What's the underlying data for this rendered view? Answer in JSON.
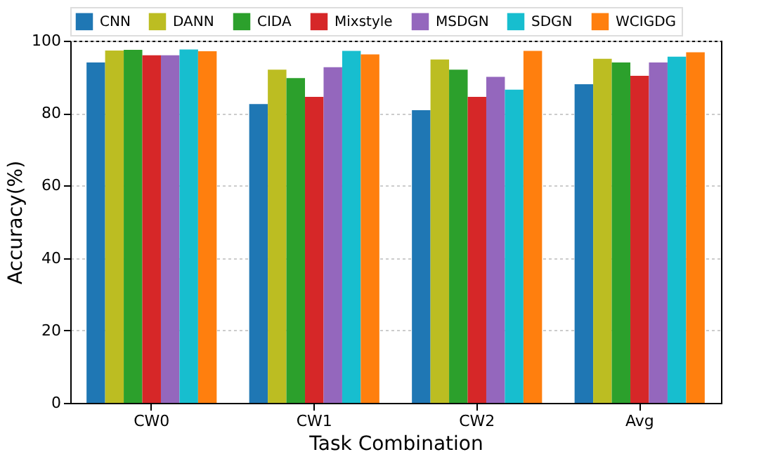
{
  "chart_data": {
    "type": "bar",
    "xlabel": "Task Combination",
    "ylabel": "Accuracy(%)",
    "categories": [
      "CW0",
      "CW1",
      "CW2",
      "Avg"
    ],
    "series": [
      {
        "name": "CNN",
        "color": "#1f77b4",
        "values": [
          94,
          82.5,
          80.8,
          88
        ]
      },
      {
        "name": "DANN",
        "color": "#bcbd22",
        "values": [
          97.3,
          92,
          94.8,
          95
        ]
      },
      {
        "name": "CIDA",
        "color": "#2ca02c",
        "values": [
          97.5,
          89.7,
          92,
          94
        ]
      },
      {
        "name": "Mixstyle",
        "color": "#d62728",
        "values": [
          96,
          84.5,
          84.5,
          90.3
        ]
      },
      {
        "name": "MSDGN",
        "color": "#9467bd",
        "values": [
          96,
          92.7,
          90,
          94
        ]
      },
      {
        "name": "SDGN",
        "color": "#17becf",
        "values": [
          97.6,
          97.2,
          86.5,
          95.6
        ]
      },
      {
        "name": "WCIGDG",
        "color": "#ff7f0e",
        "values": [
          97.1,
          96.2,
          97.2,
          96.8
        ]
      }
    ],
    "ylim": [
      0,
      100
    ],
    "yticks": [
      0,
      20,
      40,
      60,
      80,
      100
    ],
    "grid": "y",
    "legend": "top"
  }
}
